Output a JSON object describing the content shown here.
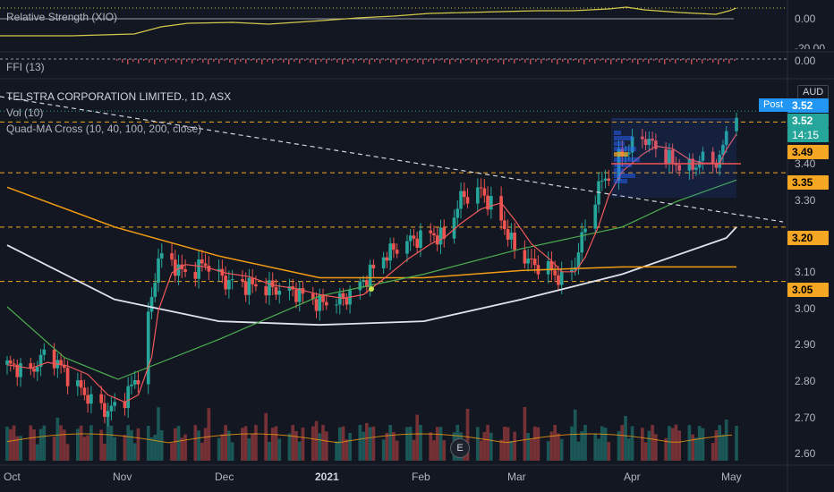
{
  "panes": {
    "rs": {
      "label": "Relative Strength (XIO)",
      "ticks": [
        "0.00",
        "-20.00"
      ]
    },
    "ffi": {
      "label": "FFI (13)",
      "ticks": [
        "0.00"
      ]
    },
    "main": {
      "title": "TELSTRA CORPORATION LIMITED., 1D, ASX",
      "vol": "Vol (10)",
      "quad": "Quad-MA Cross (10, 40, 100, 200, close)"
    }
  },
  "currency": "AUD",
  "post_label": "Post",
  "post_price": "3.52",
  "last_price": "3.52",
  "countdown": "14:15",
  "levels": [
    "3.49",
    "3.35",
    "3.20",
    "3.05"
  ],
  "price_ticks": [
    "3.40",
    "3.30",
    "3.10",
    "3.00",
    "2.90",
    "2.80",
    "2.70",
    "2.60"
  ],
  "time_ticks": [
    "Oct",
    "Nov",
    "Dec",
    "2021",
    "Feb",
    "Mar",
    "Apr",
    "May"
  ],
  "earnings_marker": "E",
  "colors": {
    "up": "#26a69a",
    "down": "#ef5350",
    "bg": "#131722",
    "level": "#f5a623",
    "ma10": "#f15a5a",
    "ma40": "#4caf50",
    "ma100": "#f39c12",
    "ma200": "#e0e3eb",
    "rs": "#d4c94a",
    "accent": "#2196f3"
  },
  "chart_data": {
    "type": "candlestick",
    "title": "TELSTRA CORPORATION LIMITED., 1D, ASX",
    "currency": "AUD",
    "ylim": [
      2.57,
      3.57
    ],
    "x_range": [
      "2020-09-28",
      "2021-05-03"
    ],
    "horizontal_levels": [
      3.49,
      3.35,
      3.2,
      3.05
    ],
    "last_close": 3.52,
    "price_path": [
      [
        "2020-09-28",
        2.82
      ],
      [
        "2020-10-05",
        2.8
      ],
      [
        "2020-10-10",
        2.86
      ],
      [
        "2020-10-16",
        2.79
      ],
      [
        "2020-10-22",
        2.73
      ],
      [
        "2020-10-28",
        2.69
      ],
      [
        "2020-11-02",
        2.73
      ],
      [
        "2020-11-06",
        2.79
      ],
      [
        "2020-11-10",
        3.0
      ],
      [
        "2020-11-12",
        3.12
      ],
      [
        "2020-11-16",
        3.1
      ],
      [
        "2020-11-20",
        3.07
      ],
      [
        "2020-11-26",
        3.1
      ],
      [
        "2020-12-02",
        3.05
      ],
      [
        "2020-12-09",
        3.04
      ],
      [
        "2020-12-16",
        3.03
      ],
      [
        "2020-12-23",
        3.02
      ],
      [
        "2020-12-30",
        2.99
      ],
      [
        "2021-01-06",
        3.0
      ],
      [
        "2021-01-12",
        3.05
      ],
      [
        "2021-01-18",
        3.12
      ],
      [
        "2021-01-25",
        3.16
      ],
      [
        "2021-02-01",
        3.18
      ],
      [
        "2021-02-05",
        3.17
      ],
      [
        "2021-02-10",
        3.28
      ],
      [
        "2021-02-16",
        3.3
      ],
      [
        "2021-02-22",
        3.22
      ],
      [
        "2021-02-26",
        3.14
      ],
      [
        "2021-03-03",
        3.1
      ],
      [
        "2021-03-09",
        3.08
      ],
      [
        "2021-03-12",
        3.05
      ],
      [
        "2021-03-16",
        3.1
      ],
      [
        "2021-03-19",
        3.2
      ],
      [
        "2021-03-23",
        3.31
      ],
      [
        "2021-03-26",
        3.35
      ],
      [
        "2021-03-30",
        3.4
      ],
      [
        "2021-04-05",
        3.45
      ],
      [
        "2021-04-09",
        3.42
      ],
      [
        "2021-04-14",
        3.38
      ],
      [
        "2021-04-19",
        3.36
      ],
      [
        "2021-04-23",
        3.39
      ],
      [
        "2021-04-28",
        3.38
      ],
      [
        "2021-04-30",
        3.47
      ],
      [
        "2021-05-03",
        3.52
      ]
    ],
    "ma_200": [
      [
        "2020-09-28",
        3.15
      ],
      [
        "2020-10-30",
        3.0
      ],
      [
        "2020-11-30",
        2.94
      ],
      [
        "2020-12-30",
        2.93
      ],
      [
        "2021-01-30",
        2.94
      ],
      [
        "2021-02-28",
        3.0
      ],
      [
        "2021-03-30",
        3.07
      ],
      [
        "2021-04-30",
        3.17
      ],
      [
        "2021-05-03",
        3.2
      ]
    ],
    "ma_100": [
      [
        "2020-09-28",
        3.31
      ],
      [
        "2020-10-30",
        3.2
      ],
      [
        "2020-11-30",
        3.12
      ],
      [
        "2020-12-30",
        3.06
      ],
      [
        "2021-01-30",
        3.06
      ],
      [
        "2021-02-28",
        3.08
      ],
      [
        "2021-03-30",
        3.09
      ],
      [
        "2021-04-30",
        3.09
      ],
      [
        "2021-05-03",
        3.09
      ]
    ],
    "ma_40": [
      [
        "2020-09-28",
        2.98
      ],
      [
        "2020-10-15",
        2.84
      ],
      [
        "2020-10-31",
        2.78
      ],
      [
        "2020-11-30",
        2.89
      ],
      [
        "2020-12-30",
        3.01
      ],
      [
        "2021-01-30",
        3.07
      ],
      [
        "2021-02-28",
        3.14
      ],
      [
        "2021-03-30",
        3.2
      ],
      [
        "2021-04-15",
        3.27
      ],
      [
        "2021-05-03",
        3.33
      ]
    ]
  }
}
